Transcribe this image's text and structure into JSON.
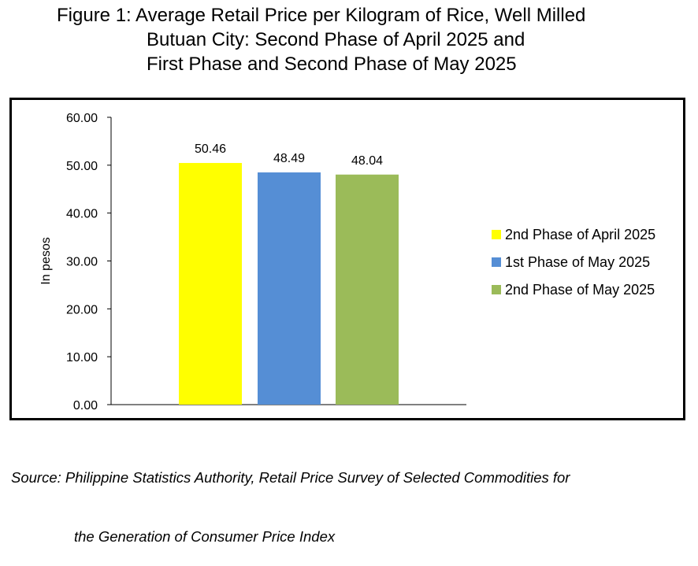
{
  "title": {
    "line1": "Figure 1: Average Retail Price per Kilogram of Rice, Well Milled",
    "line2": "Butuan City: Second Phase of April 2025 and",
    "line3": "First Phase and Second Phase of May 2025"
  },
  "source": {
    "line1": "Source: Philippine Statistics Authority, Retail Price Survey of Selected Commodities for",
    "line2": "the Generation of Consumer Price Index"
  },
  "chart_data": {
    "type": "bar",
    "categories": [
      "2nd Phase of April 2025",
      "1st Phase of May 2025",
      "2nd Phase of May 2025"
    ],
    "values": [
      50.46,
      48.49,
      48.04
    ],
    "data_labels": [
      "50.46",
      "48.49",
      "48.04"
    ],
    "colors": [
      "#FFFF00",
      "#558ED5",
      "#9BBB59"
    ],
    "ylabel": "In pesos",
    "xlabel": "",
    "ylim": [
      0,
      60
    ],
    "yticks": [
      0,
      10,
      20,
      30,
      40,
      50,
      60
    ],
    "ytick_labels": [
      "0.00",
      "10.00",
      "20.00",
      "30.00",
      "40.00",
      "50.00",
      "60.00"
    ],
    "legend": {
      "position": "right",
      "entries": [
        "2nd Phase of April 2025",
        "1st Phase of May 2025",
        "2nd Phase of May 2025"
      ]
    },
    "grid": false
  }
}
